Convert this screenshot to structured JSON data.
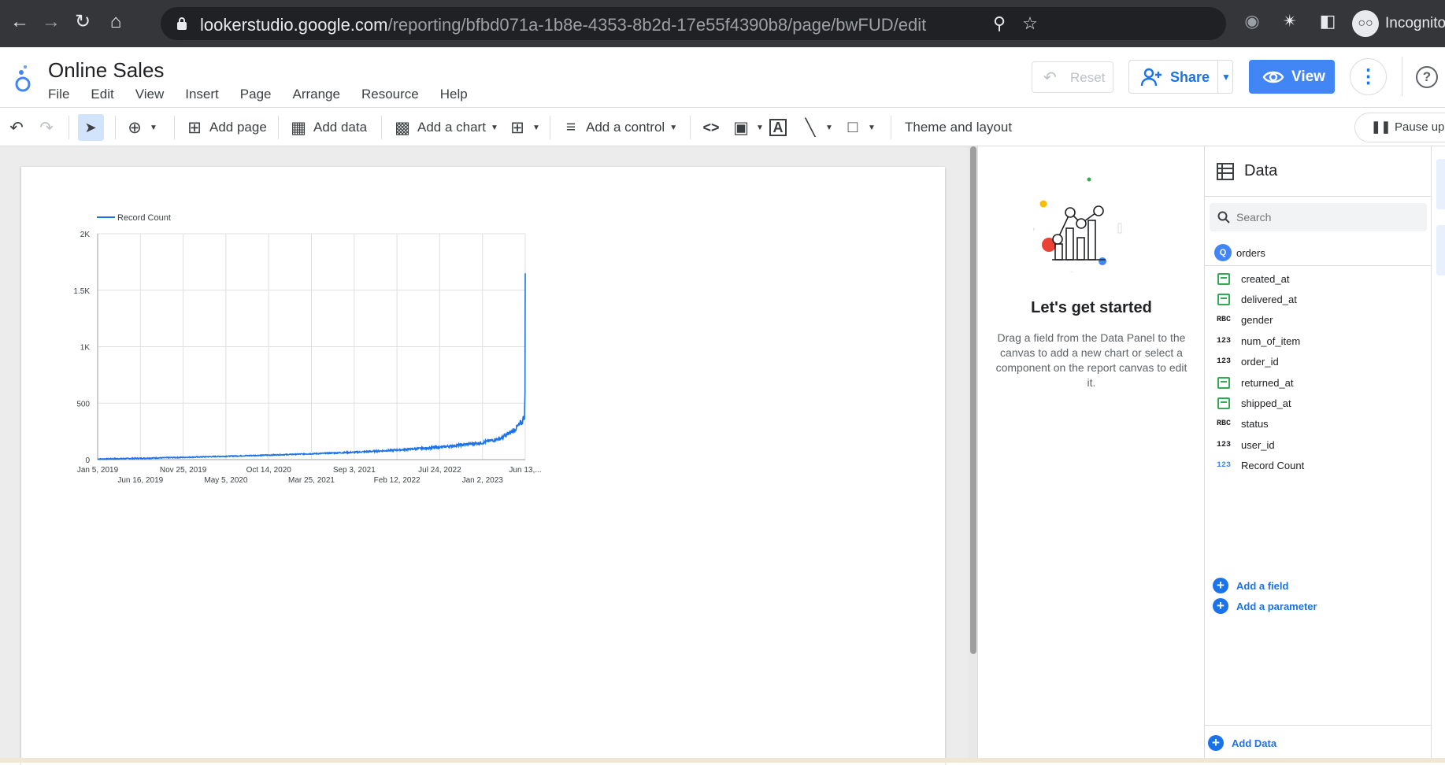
{
  "browser": {
    "url_host": "lookerstudio.google.com",
    "url_path": "/reporting/bfbd071a-1b8e-4353-8b2d-17e55f4390b8/page/bwFUD/edit",
    "profile_label": "Incognito"
  },
  "app": {
    "title": "Online Sales",
    "menu": [
      "File",
      "Edit",
      "View",
      "Insert",
      "Page",
      "Arrange",
      "Resource",
      "Help"
    ],
    "reset_label": "Reset",
    "share_label": "Share",
    "view_label": "View",
    "accent": "#1a73e8"
  },
  "toolbar": {
    "add_page": "Add page",
    "add_data": "Add data",
    "add_chart": "Add a chart",
    "add_control": "Add a control",
    "theme_layout": "Theme and layout",
    "pause": "Pause upd"
  },
  "chart_data": {
    "type": "line",
    "series": [
      {
        "name": "Record Count",
        "color": "#1a73e8"
      }
    ],
    "legend_position": "top-left",
    "grid": true,
    "ylim": [
      0,
      2000
    ],
    "y_ticks": [
      "0",
      "500",
      "1K",
      "1.5K",
      "2K"
    ],
    "x_ticks_top": [
      "Jan 5, 2019",
      "Nov 25, 2019",
      "Oct 14, 2020",
      "Sep 3, 2021",
      "Jul 24, 2022",
      "Jun 13,..."
    ],
    "x_ticks_bottom": [
      "Jun 16, 2019",
      "May 5, 2020",
      "Mar 25, 2021",
      "Feb 12, 2022",
      "Jan 2, 2023"
    ],
    "x": [
      "2019-01-05",
      "2019-06-16",
      "2019-11-25",
      "2020-05-05",
      "2020-10-14",
      "2021-03-25",
      "2021-09-03",
      "2022-02-12",
      "2022-07-24",
      "2023-01-02",
      "2023-03-15",
      "2023-05-01",
      "2023-06-01",
      "2023-06-10",
      "2023-06-12",
      "2023-06-13"
    ],
    "values": [
      5,
      12,
      20,
      30,
      40,
      52,
      65,
      85,
      110,
      150,
      190,
      260,
      330,
      400,
      550,
      1650
    ]
  },
  "started_panel": {
    "heading": "Let's get started",
    "body": "Drag a field from the Data Panel to the canvas to add a new chart or select a component on the report canvas to edit it."
  },
  "data_panel": {
    "title": "Data",
    "search_placeholder": "Search",
    "source": "orders",
    "fields": [
      {
        "name": "created_at",
        "type": "date",
        "icon": "calendar-icon"
      },
      {
        "name": "delivered_at",
        "type": "date",
        "icon": "calendar-icon"
      },
      {
        "name": "gender",
        "type": "text",
        "icon": "RBC"
      },
      {
        "name": "num_of_item",
        "type": "number",
        "icon": "123"
      },
      {
        "name": "order_id",
        "type": "number",
        "icon": "123"
      },
      {
        "name": "returned_at",
        "type": "date",
        "icon": "calendar-icon"
      },
      {
        "name": "shipped_at",
        "type": "date",
        "icon": "calendar-icon"
      },
      {
        "name": "status",
        "type": "text",
        "icon": "RBC"
      },
      {
        "name": "user_id",
        "type": "number",
        "icon": "123"
      },
      {
        "name": "Record Count",
        "type": "metric",
        "icon": "123"
      }
    ],
    "add_field": "Add a field",
    "add_parameter": "Add a parameter",
    "add_data": "Add Data"
  }
}
